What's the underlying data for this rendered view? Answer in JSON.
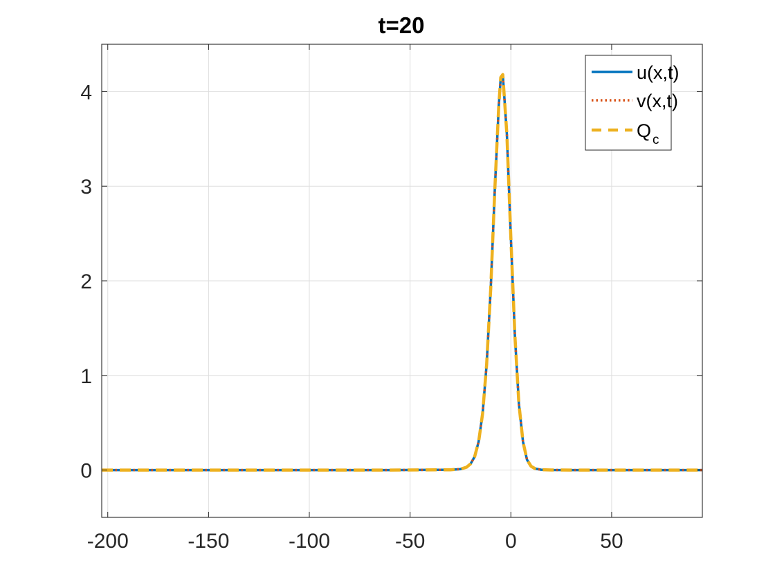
{
  "chart_data": {
    "type": "line",
    "title": "t=20",
    "xlabel": "",
    "ylabel": "",
    "xlim": [
      -203,
      95
    ],
    "ylim": [
      -0.5,
      4.5
    ],
    "grid": true,
    "legend_location": "top-right",
    "x_ticks": [
      -200,
      -150,
      -100,
      -50,
      0,
      50
    ],
    "x_tick_labels": [
      "-200",
      "-150",
      "-100",
      "-50",
      "0",
      "50"
    ],
    "y_ticks": [
      0,
      1,
      2,
      3,
      4
    ],
    "y_tick_labels": [
      "0",
      "1",
      "2",
      "3",
      "4"
    ],
    "x": [
      -203,
      -60,
      -30,
      -25,
      -22,
      -20,
      -18,
      -16,
      -14,
      -12,
      -10,
      -8,
      -6,
      -5,
      -4,
      -2,
      0,
      2,
      4,
      6,
      8,
      10,
      12,
      15,
      20,
      30,
      60,
      95
    ],
    "series": [
      {
        "name": "u(x,t)",
        "style": "solid",
        "color": "#0072BD",
        "values": [
          0,
          0,
          0.003,
          0.01,
          0.03,
          0.065,
          0.14,
          0.3,
          0.6,
          1.12,
          1.92,
          2.95,
          3.85,
          4.15,
          4.18,
          3.55,
          2.45,
          1.42,
          0.7,
          0.3,
          0.11,
          0.04,
          0.015,
          0.004,
          0.001,
          0,
          0,
          0
        ]
      },
      {
        "name": "v(x,t)",
        "style": "dotted",
        "color": "#D95319",
        "values": [
          0,
          0,
          0.003,
          0.01,
          0.03,
          0.065,
          0.14,
          0.3,
          0.6,
          1.12,
          1.92,
          2.95,
          3.85,
          4.15,
          4.18,
          3.55,
          2.45,
          1.42,
          0.7,
          0.3,
          0.11,
          0.04,
          0.015,
          0.004,
          0.001,
          0,
          0,
          0
        ]
      },
      {
        "name": "Q",
        "name_subscript": "c",
        "style": "dashed",
        "color": "#EDB120",
        "values": [
          0,
          0,
          0.003,
          0.01,
          0.03,
          0.065,
          0.14,
          0.3,
          0.6,
          1.12,
          1.92,
          2.95,
          3.85,
          4.15,
          4.18,
          3.55,
          2.45,
          1.42,
          0.7,
          0.3,
          0.11,
          0.04,
          0.015,
          0.004,
          0.001,
          0,
          0,
          0
        ]
      }
    ]
  }
}
